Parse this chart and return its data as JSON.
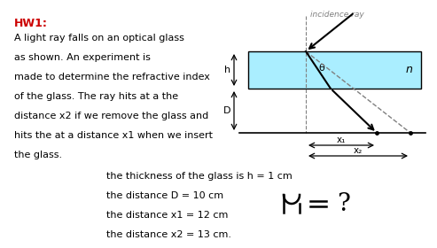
{
  "bg_color": "#ffffff",
  "hw_label": "HW1:",
  "hw_color": "#cc0000",
  "body_lines": [
    "A light ray falls on an optical glass",
    "as shown. An experiment is",
    "made to determine the refractive index",
    "of the glass. The ray hits at a the",
    "distance x2 if we remove the glass and",
    "hits the at a distance x1 when we insert",
    "the glass."
  ],
  "param_lines": [
    "the thickness of the glass is h = 1 cm",
    "the distance D = 10 cm",
    "the distance x1 = 12 cm",
    "the distance x2 = 13 cm."
  ],
  "glass_color": "#aaeeff",
  "glass_border": "#000000",
  "incidence_label": "incidence ray",
  "theta_label": "θ",
  "n_label": "n",
  "h_label": "h",
  "D_label": "D",
  "x1_label": "x₁",
  "x2_label": "x₂"
}
